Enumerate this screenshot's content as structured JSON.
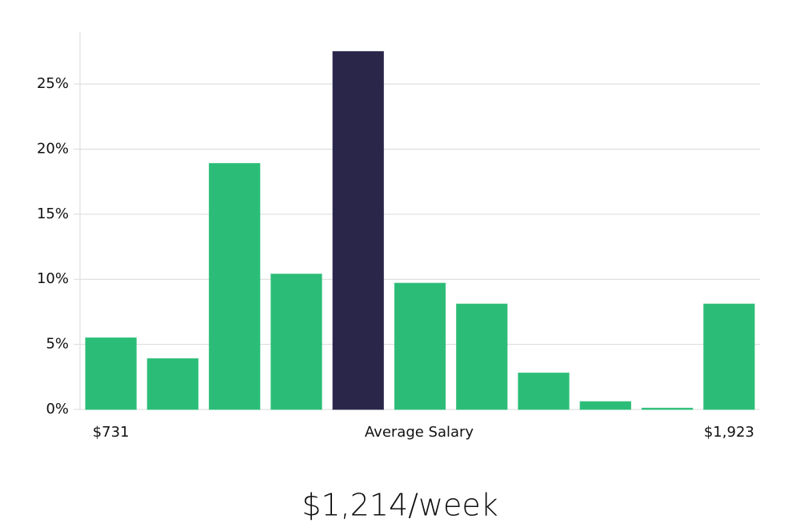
{
  "chart_data": {
    "type": "bar",
    "subtitle": "$1,214/week",
    "x_label": "Average Salary",
    "categories": [
      "$731",
      null,
      null,
      null,
      null,
      null,
      null,
      null,
      null,
      null,
      "$1,923"
    ],
    "values": [
      5.5,
      3.9,
      18.9,
      10.4,
      27.5,
      9.7,
      8.1,
      2.8,
      0.6,
      0.1,
      8.1
    ],
    "color": "#2bbd77",
    "highlight": 4,
    "highlight_color": "#29264a",
    "ylim": [
      0,
      29
    ],
    "yticks": [
      {
        "value": 0,
        "label": "0%"
      },
      {
        "value": 5,
        "label": "5%"
      },
      {
        "value": 10,
        "label": "10%"
      },
      {
        "value": 15,
        "label": "15%"
      },
      {
        "value": 20,
        "label": "20%"
      },
      {
        "value": 25,
        "label": "25%"
      }
    ],
    "grid": true
  }
}
